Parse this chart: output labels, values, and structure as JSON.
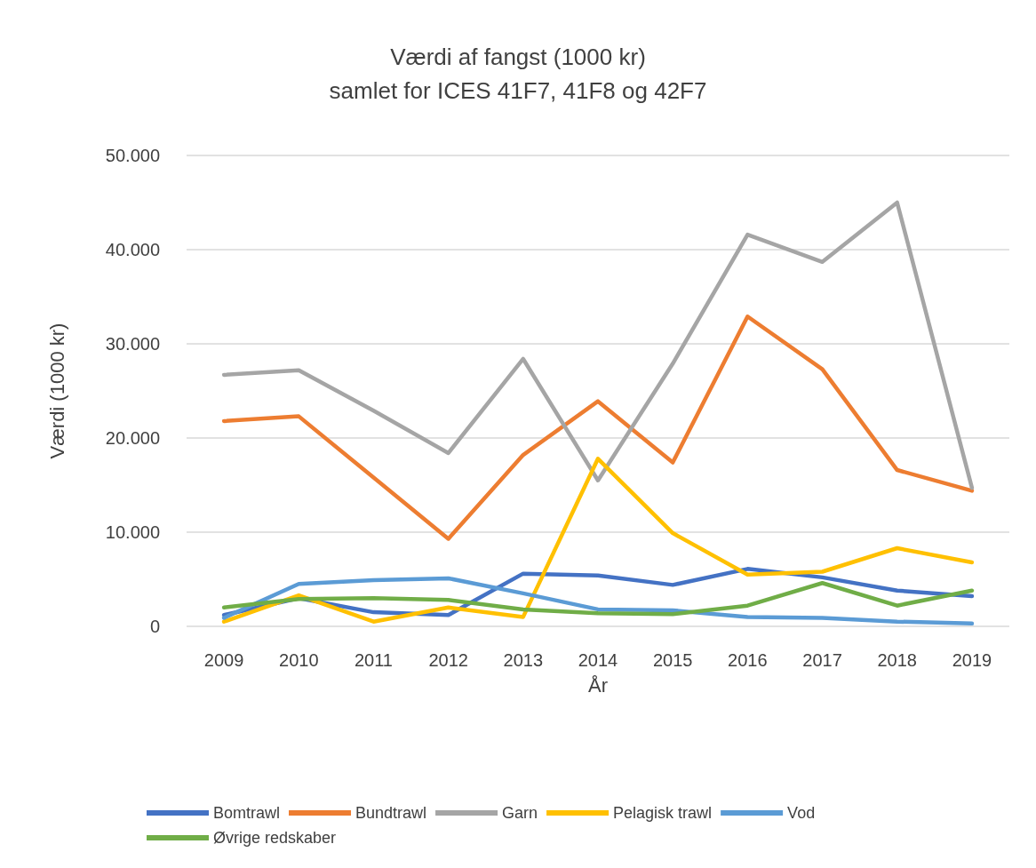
{
  "chart_data": {
    "type": "line",
    "title": "Værdi af fangst (1000 kr)\nsamlet for ICES 41F7, 41F8 og 42F7",
    "xlabel": "År",
    "ylabel": "Værdi (1000 kr)",
    "categories": [
      "2009",
      "2010",
      "2011",
      "2012",
      "2013",
      "2014",
      "2015",
      "2016",
      "2017",
      "2018",
      "2019"
    ],
    "series": [
      {
        "name": "Bomtrawl",
        "color": "#4472c4",
        "values": [
          1200,
          3000,
          1500,
          1200,
          5600,
          5400,
          4400,
          6100,
          5200,
          3800,
          3200
        ]
      },
      {
        "name": "Bundtrawl",
        "color": "#ed7d31",
        "values": [
          21800,
          22300,
          15800,
          9300,
          18200,
          23900,
          17400,
          32900,
          27300,
          16600,
          14400
        ]
      },
      {
        "name": "Garn",
        "color": "#a5a5a5",
        "values": [
          26700,
          27200,
          22900,
          18400,
          28400,
          15500,
          27900,
          41600,
          38700,
          45000,
          14700
        ]
      },
      {
        "name": "Pelagisk trawl",
        "color": "#ffc000",
        "values": [
          500,
          3300,
          500,
          2000,
          1000,
          17800,
          9900,
          5500,
          5800,
          8300,
          6800
        ]
      },
      {
        "name": "Vod",
        "color": "#5b9bd5",
        "values": [
          900,
          4500,
          4900,
          5100,
          3500,
          1800,
          1700,
          1000,
          900,
          500,
          300
        ]
      },
      {
        "name": "Øvrige redskaber",
        "color": "#70ad47",
        "values": [
          2000,
          2900,
          3000,
          2800,
          1800,
          1400,
          1300,
          2200,
          4600,
          2200,
          3800
        ]
      }
    ],
    "ylim": [
      0,
      50000
    ],
    "yticks": [
      {
        "value": 0,
        "label": "0"
      },
      {
        "value": 10000,
        "label": "10.000"
      },
      {
        "value": 20000,
        "label": "20.000"
      },
      {
        "value": 30000,
        "label": "30.000"
      },
      {
        "value": 40000,
        "label": "40.000"
      },
      {
        "value": 50000,
        "label": "50.000"
      }
    ],
    "grid": "y",
    "legend": "bottom",
    "marker": "none",
    "line_style": "solid"
  }
}
